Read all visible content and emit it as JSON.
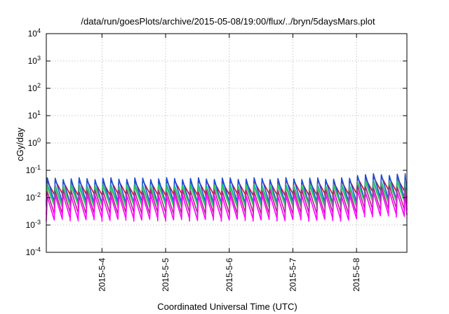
{
  "chart_data": {
    "type": "line",
    "title": "/data/run/goesPlots/archive/2015-05-08/19:00/flux/../bryn/5daysMars.plot",
    "xlabel": "Coordinated Universal Time (UTC)",
    "ylabel": "cGy/day",
    "y_scale": "log",
    "ylim": [
      0.0001,
      10000
    ],
    "xlim": [
      "2015-05-03T03:00",
      "2015-05-08T19:00"
    ],
    "y_ticks": [
      {
        "value": 0.0001,
        "base": "10",
        "exp": "-4"
      },
      {
        "value": 0.001,
        "base": "10",
        "exp": "-3"
      },
      {
        "value": 0.01,
        "base": "10",
        "exp": "-2"
      },
      {
        "value": 0.1,
        "base": "10",
        "exp": "-1"
      },
      {
        "value": 1,
        "base": "10",
        "exp": "0"
      },
      {
        "value": 10,
        "base": "10",
        "exp": "1"
      },
      {
        "value": 100,
        "base": "10",
        "exp": "2"
      },
      {
        "value": 1000,
        "base": "10",
        "exp": "3"
      },
      {
        "value": 10000,
        "base": "10",
        "exp": "4"
      }
    ],
    "x_ticks": [
      {
        "value": "2015-05-04T00:00",
        "label": "2015-5-4"
      },
      {
        "value": "2015-05-05T00:00",
        "label": "2015-5-5"
      },
      {
        "value": "2015-05-06T00:00",
        "label": "2015-5-6"
      },
      {
        "value": "2015-05-07T00:00",
        "label": "2015-5-7"
      },
      {
        "value": "2015-05-08T00:00",
        "label": "2015-5-8"
      }
    ],
    "grid": true,
    "legend": "none",
    "cycle_hours": 3,
    "series": [
      {
        "color": "#c8102e",
        "peak": 0.04,
        "trough": 0.012
      },
      {
        "color": "#1a4ed8",
        "peak": 0.05,
        "trough": 0.006
      },
      {
        "color": "#22aaaa",
        "peak": 0.03,
        "trough": 0.005
      },
      {
        "color": "#33cc55",
        "peak": 0.025,
        "trough": 0.0045
      },
      {
        "color": "#b0208a",
        "peak": 0.018,
        "trough": 0.0025
      },
      {
        "color": "#ff00ff",
        "peak": 0.012,
        "trough": 0.0015
      }
    ],
    "late_peak": {
      "from": "2015-05-08T00:00",
      "factor": 1.4
    },
    "dip": {
      "at": "2015-05-04T13:30",
      "value": 0.0007
    }
  }
}
